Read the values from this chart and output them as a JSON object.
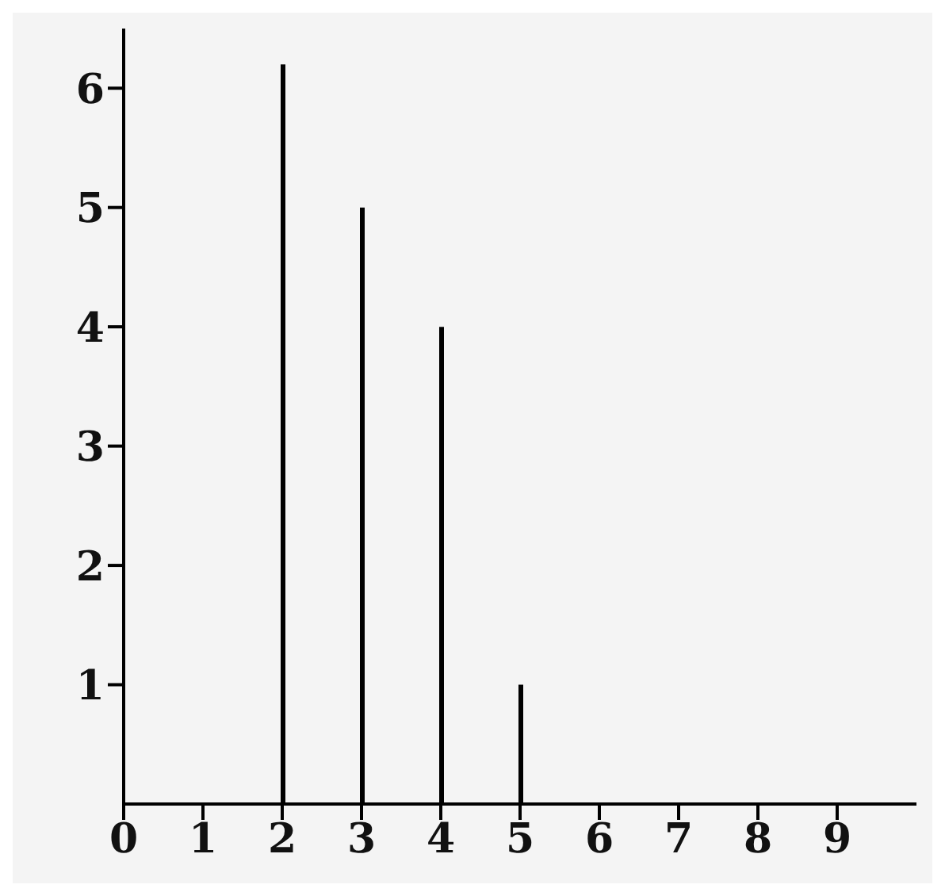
{
  "chart_data": {
    "type": "bar",
    "x": [
      2,
      3,
      4,
      5
    ],
    "values": [
      6.2,
      5,
      4,
      1
    ],
    "color": "#000000",
    "xlim": [
      0,
      10
    ],
    "xticks": [
      0,
      1,
      2,
      3,
      4,
      5,
      6,
      7,
      8,
      9
    ],
    "ylim": [
      0,
      6.5
    ],
    "yticks": [
      1,
      2,
      3,
      4,
      5,
      6
    ],
    "grid": false,
    "legend": false
  }
}
